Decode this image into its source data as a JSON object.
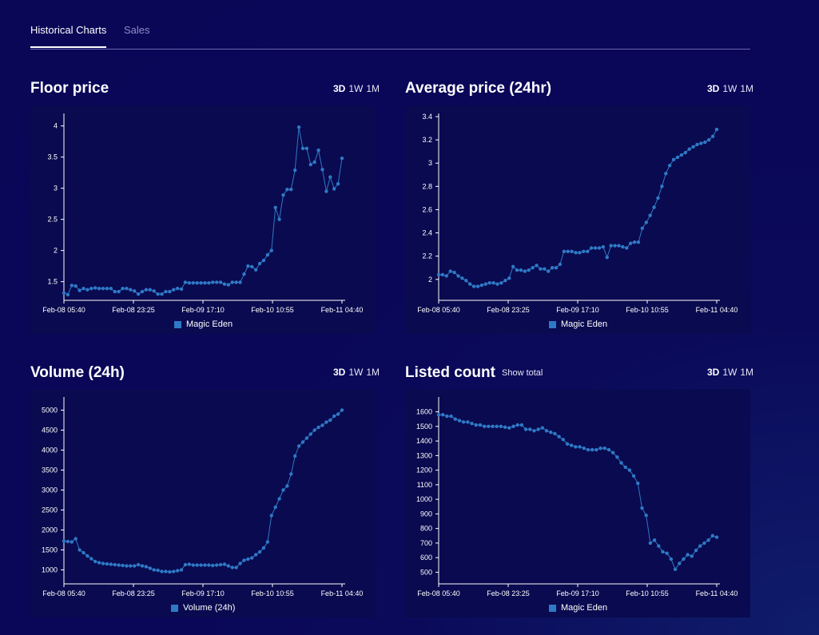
{
  "tabs": [
    {
      "label": "Historical Charts"
    },
    {
      "label": "Sales"
    }
  ],
  "ranges": [
    "3D",
    "1W",
    "1M"
  ],
  "colors": {
    "series": "#2f79c6",
    "panel": "#090a4f",
    "axis": "#ffffff"
  },
  "panels": [
    {
      "title": "Floor price"
    },
    {
      "title": "Average price (24hr)"
    },
    {
      "title": "Volume (24h)"
    },
    {
      "title": "Listed count",
      "extra": "Show total"
    }
  ],
  "chart_data": [
    {
      "type": "line",
      "title": "Floor price",
      "x_ticks": [
        "Feb-08 05:40",
        "Feb-08 23:25",
        "Feb-09 17:10",
        "Feb-10 10:55",
        "Feb-11 04:40"
      ],
      "ylim": [
        1.2,
        4.15
      ],
      "y_ticks": [
        1.5,
        2,
        2.5,
        3,
        3.5,
        4
      ],
      "series": [
        {
          "name": "Magic Eden",
          "values": [
            1.32,
            1.29,
            1.44,
            1.43,
            1.36,
            1.39,
            1.37,
            1.39,
            1.4,
            1.39,
            1.39,
            1.39,
            1.39,
            1.34,
            1.34,
            1.39,
            1.39,
            1.37,
            1.35,
            1.3,
            1.34,
            1.37,
            1.37,
            1.35,
            1.3,
            1.3,
            1.34,
            1.34,
            1.37,
            1.39,
            1.38,
            1.49,
            1.48,
            1.48,
            1.48,
            1.48,
            1.48,
            1.48,
            1.49,
            1.49,
            1.49,
            1.46,
            1.45,
            1.49,
            1.49,
            1.49,
            1.62,
            1.75,
            1.74,
            1.69,
            1.79,
            1.84,
            1.93,
            2.0,
            2.69,
            2.5,
            2.89,
            2.98,
            2.98,
            3.29,
            3.98,
            3.64,
            3.64,
            3.38,
            3.42,
            3.61,
            3.3,
            2.95,
            3.18,
            2.99,
            3.07,
            3.48
          ]
        }
      ]
    },
    {
      "type": "line",
      "title": "Average price (24hr)",
      "x_ticks": [
        "Feb-08 05:40",
        "Feb-08 23:25",
        "Feb-09 17:10",
        "Feb-10 10:55",
        "Feb-11 04:40"
      ],
      "ylim": [
        1.82,
        3.4
      ],
      "y_ticks": [
        2,
        2.2,
        2.4,
        2.6,
        2.8,
        3,
        3.2,
        3.4
      ],
      "series": [
        {
          "name": "Magic Eden",
          "values": [
            2.04,
            2.04,
            2.03,
            2.07,
            2.06,
            2.03,
            2.01,
            1.99,
            1.96,
            1.94,
            1.94,
            1.95,
            1.96,
            1.97,
            1.97,
            1.96,
            1.97,
            1.99,
            2.01,
            2.11,
            2.08,
            2.08,
            2.07,
            2.08,
            2.1,
            2.12,
            2.09,
            2.09,
            2.07,
            2.1,
            2.1,
            2.13,
            2.24,
            2.24,
            2.24,
            2.23,
            2.23,
            2.24,
            2.24,
            2.27,
            2.27,
            2.27,
            2.28,
            2.19,
            2.29,
            2.29,
            2.29,
            2.28,
            2.27,
            2.31,
            2.32,
            2.32,
            2.44,
            2.49,
            2.55,
            2.62,
            2.7,
            2.8,
            2.91,
            2.98,
            3.03,
            3.05,
            3.07,
            3.09,
            3.12,
            3.14,
            3.16,
            3.17,
            3.18,
            3.2,
            3.23,
            3.29
          ]
        }
      ]
    },
    {
      "type": "line",
      "title": "Volume (24h)",
      "x_ticks": [
        "Feb-08 05:40",
        "Feb-08 23:25",
        "Feb-09 17:10",
        "Feb-10 10:55",
        "Feb-11 04:40"
      ],
      "ylim": [
        650,
        5250
      ],
      "y_ticks": [
        1000,
        1500,
        2000,
        2500,
        3000,
        3500,
        4000,
        4500,
        5000
      ],
      "series": [
        {
          "name": "Volume (24h)",
          "values": [
            1720,
            1710,
            1700,
            1780,
            1500,
            1430,
            1350,
            1280,
            1210,
            1180,
            1160,
            1150,
            1140,
            1130,
            1120,
            1110,
            1100,
            1100,
            1100,
            1130,
            1100,
            1080,
            1040,
            1000,
            990,
            960,
            960,
            950,
            960,
            980,
            1000,
            1130,
            1140,
            1120,
            1120,
            1120,
            1120,
            1120,
            1110,
            1120,
            1130,
            1140,
            1100,
            1060,
            1060,
            1160,
            1240,
            1270,
            1300,
            1380,
            1450,
            1550,
            1700,
            2360,
            2570,
            2780,
            3000,
            3100,
            3400,
            3850,
            4100,
            4200,
            4300,
            4400,
            4500,
            4570,
            4620,
            4700,
            4750,
            4850,
            4900,
            5000
          ]
        }
      ]
    },
    {
      "type": "line",
      "title": "Listed count",
      "x_ticks": [
        "Feb-08 05:40",
        "Feb-08 23:25",
        "Feb-09 17:10",
        "Feb-10 10:55",
        "Feb-11 04:40"
      ],
      "ylim": [
        420,
        1680
      ],
      "y_ticks": [
        500,
        600,
        700,
        800,
        900,
        1000,
        1100,
        1200,
        1300,
        1400,
        1500,
        1600
      ],
      "series": [
        {
          "name": "Magic Eden",
          "values": [
            1580,
            1580,
            1570,
            1570,
            1550,
            1540,
            1530,
            1530,
            1520,
            1510,
            1510,
            1500,
            1500,
            1500,
            1500,
            1500,
            1495,
            1490,
            1500,
            1510,
            1510,
            1480,
            1480,
            1470,
            1480,
            1490,
            1470,
            1460,
            1450,
            1430,
            1410,
            1380,
            1370,
            1360,
            1360,
            1350,
            1340,
            1340,
            1340,
            1350,
            1350,
            1340,
            1320,
            1290,
            1250,
            1220,
            1200,
            1160,
            1110,
            940,
            890,
            700,
            720,
            680,
            640,
            630,
            590,
            520,
            560,
            590,
            620,
            610,
            650,
            680,
            700,
            720,
            750,
            740
          ]
        }
      ]
    }
  ]
}
